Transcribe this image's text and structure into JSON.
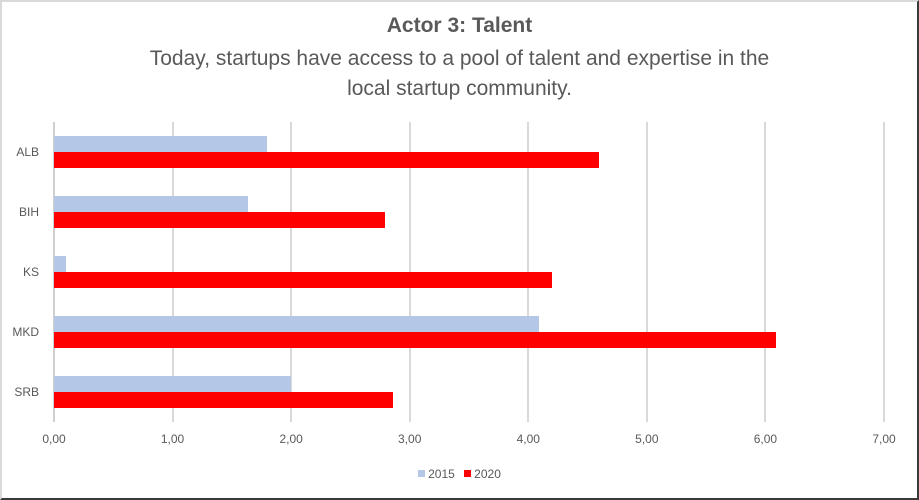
{
  "chart_data": {
    "type": "bar",
    "orientation": "horizontal",
    "title": "Actor 3: Talent",
    "subtitle": "Today, startups have access to a pool of talent and expertise in the local startup community.",
    "subtitle_lines": [
      "Today, startups have access to a pool of talent and expertise in the",
      "local startup community."
    ],
    "categories": [
      "ALB",
      "BIH",
      "KS",
      "MKD",
      "SRB"
    ],
    "series": [
      {
        "name": "2015",
        "color": "#b4c7e7",
        "values": [
          1.8,
          1.64,
          0.1,
          4.09,
          2.0
        ]
      },
      {
        "name": "2020",
        "color": "#ff0000",
        "values": [
          4.6,
          2.79,
          4.2,
          6.09,
          2.86
        ]
      }
    ],
    "xlabel": "",
    "ylabel": "",
    "xlim": [
      0,
      7
    ],
    "x_ticks": [
      "0,00",
      "1,00",
      "2,00",
      "3,00",
      "4,00",
      "5,00",
      "6,00",
      "7,00"
    ],
    "grid": true,
    "legend_position": "bottom"
  }
}
